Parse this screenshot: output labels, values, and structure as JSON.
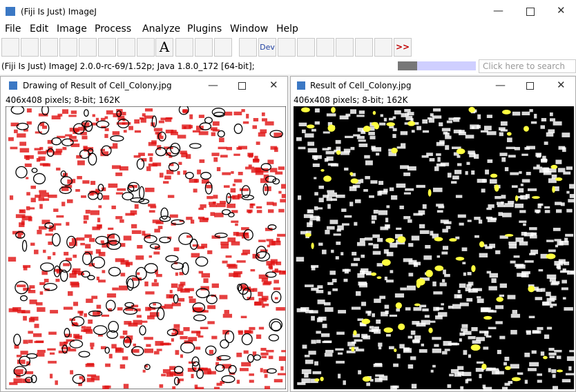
{
  "main_window": {
    "title": "(Fiji Is Just) ImageJ",
    "menu": [
      "File",
      "Edit",
      "Image",
      "Process",
      "Analyze",
      "Plugins",
      "Window",
      "Help"
    ],
    "toolbar": {
      "text_tool": "A",
      "dev": "Dev",
      "more": ">>"
    },
    "status": "(Fiji Is Just) ImageJ 2.0.0-rc-69/1.52p; Java 1.8.0_172 [64-bit];",
    "search_placeholder": "Click here to search"
  },
  "windows": [
    {
      "title": "Drawing of Result of Cell_Colony.jpg",
      "info": "406x408 pixels; 8-bit; 162K"
    },
    {
      "title": "Result of Cell_Colony.jpg",
      "info": "406x408 pixels; 8-bit; 162K"
    }
  ]
}
